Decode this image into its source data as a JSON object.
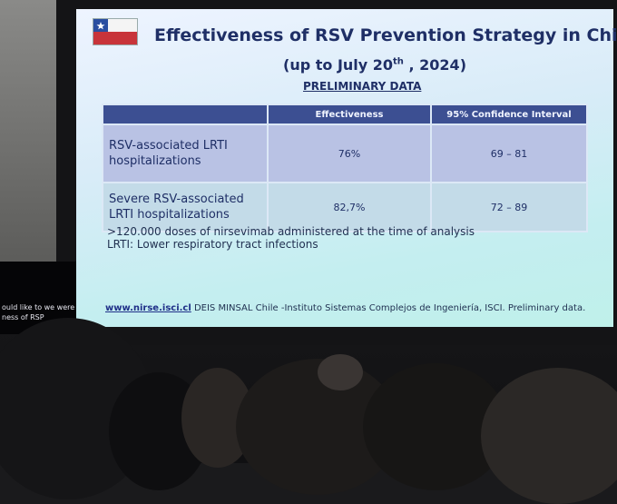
{
  "side_screen": {
    "lines": [
      "ould like to we were",
      "ness of RSP"
    ]
  },
  "slide": {
    "title": "Effectiveness of RSV Prevention Strategy in Chile",
    "subtitle": {
      "before": "(up to July 20",
      "superscript": "th",
      "after": " , 2024)"
    },
    "label": "PRELIMINARY DATA",
    "table": {
      "header": [
        "Effectiveness",
        "95% Confidence Interval"
      ],
      "rows": [
        [
          "RSV-associated LRTI hospitalizations",
          "76%",
          "69 – 81"
        ],
        [
          "Severe RSV-associated LRTI hospitalizations",
          "82,7%",
          "72 – 89"
        ]
      ]
    },
    "notes": [
      ">120.000 doses of nirsevimab administered at the time of analysis",
      "LRTI: Lower respiratory tract infections"
    ],
    "footer": {
      "link": "www.nirse.isci.cl",
      "text": " DEIS MINSAL Chile -Instituto Sistemas Complejos de Ingeniería, ISCI. Preliminary data."
    }
  }
}
